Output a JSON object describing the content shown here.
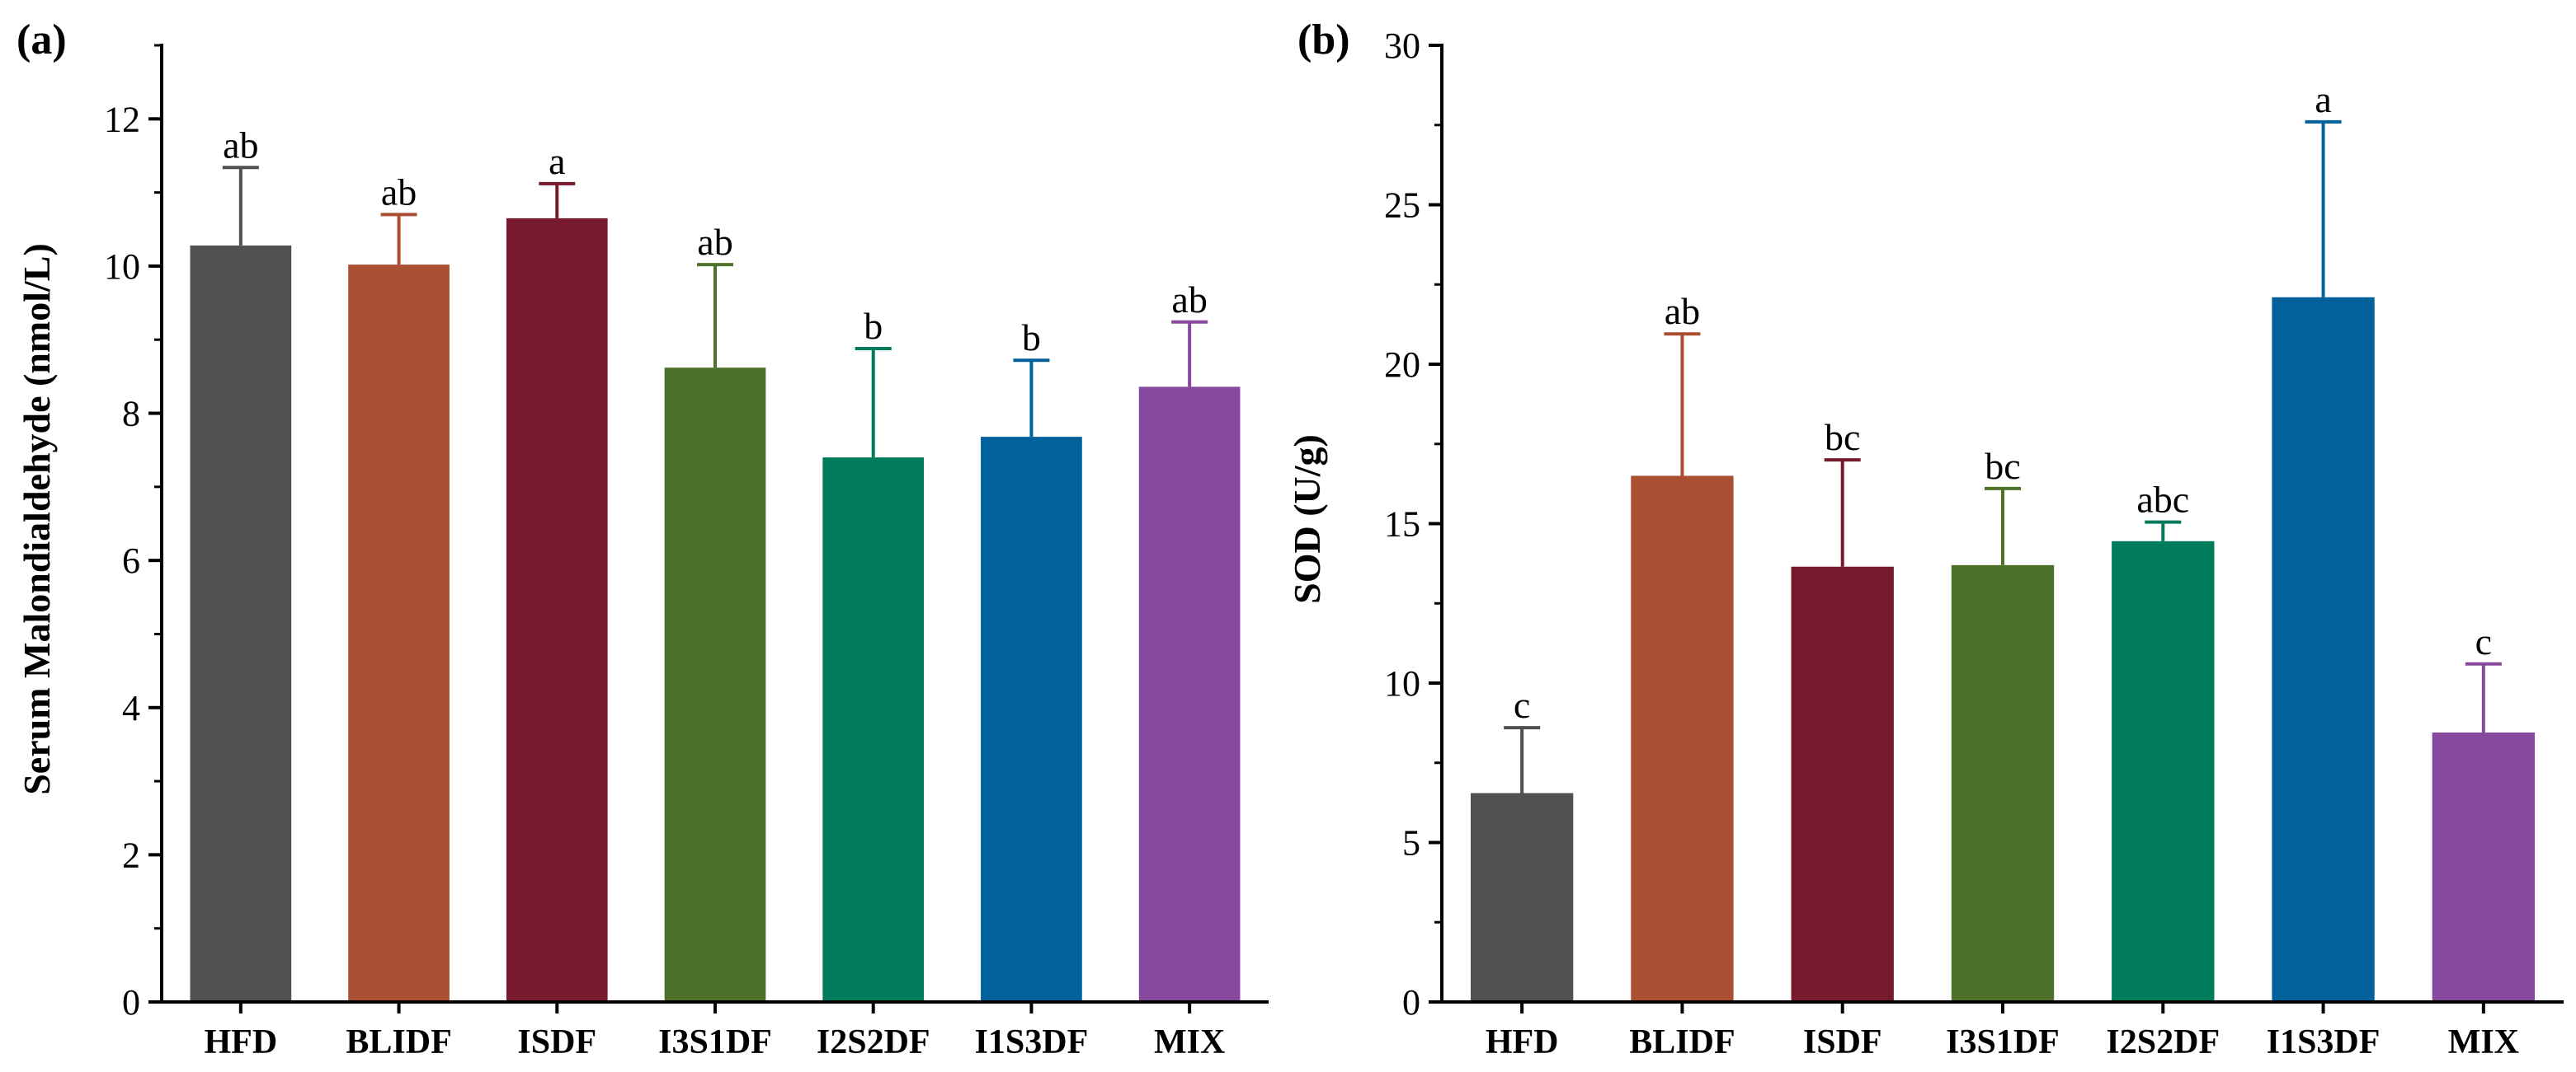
{
  "chart_data": [
    {
      "type": "bar",
      "panel_label": "(a)",
      "ylabel": "Serum Malondialdehyde (nmol/L)",
      "ylim": [
        0,
        13
      ],
      "yticks": [
        0,
        2,
        4,
        6,
        8,
        10,
        12
      ],
      "categories": [
        "HFD",
        "BLIDF",
        "ISDF",
        "I3S1DF",
        "I2S2DF",
        "I1S3DF",
        "MIX"
      ],
      "values": [
        10.28,
        10.02,
        10.65,
        8.62,
        7.4,
        7.68,
        8.36
      ],
      "errors": [
        1.06,
        0.68,
        0.47,
        1.4,
        1.48,
        1.04,
        0.88
      ],
      "significance": [
        "ab",
        "ab",
        "a",
        "ab",
        "b",
        "b",
        "ab"
      ],
      "colors": [
        "#505050",
        "#AA4F32",
        "#781A2E",
        "#4D7128",
        "#007C5D",
        "#02609A",
        "#87499E"
      ]
    },
    {
      "type": "bar",
      "panel_label": "(b)",
      "ylabel": "SOD (U/g)",
      "ylim": [
        0,
        30
      ],
      "yticks": [
        0,
        5,
        10,
        15,
        20,
        25,
        30
      ],
      "categories": [
        "HFD",
        "BLIDF",
        "ISDF",
        "I3S1DF",
        "I2S2DF",
        "I1S3DF",
        "MIX"
      ],
      "values": [
        6.55,
        16.5,
        13.65,
        13.7,
        14.45,
        22.1,
        8.45
      ],
      "errors": [
        2.05,
        4.45,
        3.35,
        2.4,
        0.6,
        5.5,
        2.15
      ],
      "significance": [
        "c",
        "ab",
        "bc",
        "bc",
        "abc",
        "a",
        "c"
      ],
      "colors": [
        "#505050",
        "#AA4F32",
        "#781A2E",
        "#4D7128",
        "#007C5D",
        "#02609A",
        "#87499E"
      ]
    }
  ]
}
